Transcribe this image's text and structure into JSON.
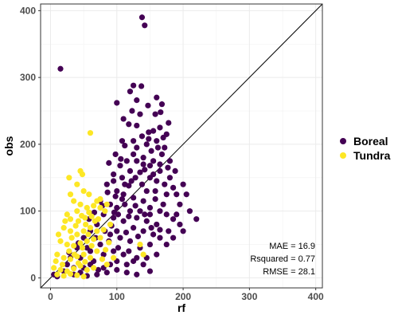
{
  "chart_data": {
    "type": "scatter",
    "xlabel": "rf",
    "ylabel": "obs",
    "xlim": [
      -15,
      410
    ],
    "ylim": [
      -15,
      410
    ],
    "x_ticks": [
      0,
      100,
      200,
      300,
      400
    ],
    "y_ticks": [
      0,
      100,
      200,
      300,
      400
    ],
    "x_tick_labels": [
      "0",
      "100",
      "200",
      "300",
      "400"
    ],
    "y_tick_labels": [
      "0",
      "100",
      "200",
      "300",
      "400"
    ],
    "grid": true,
    "reference_line": "y = x",
    "legend": {
      "position": "right",
      "entries": [
        {
          "label": "Boreal",
          "color": "#440154"
        },
        {
          "label": "Tundra",
          "color": "#FDE725"
        }
      ]
    },
    "annotations": [
      "MAE = 16.9",
      "Rsquared = 0.77",
      "RMSE = 28.1"
    ],
    "series": [
      {
        "name": "Boreal",
        "color": "#440154",
        "points": [
          [
            138,
            390
          ],
          [
            142,
            378
          ],
          [
            15,
            313
          ],
          [
            125,
            288
          ],
          [
            137,
            287
          ],
          [
            120,
            279
          ],
          [
            130,
            266
          ],
          [
            147,
            258
          ],
          [
            100,
            262
          ],
          [
            135,
            245
          ],
          [
            165,
            225
          ],
          [
            155,
            220
          ],
          [
            148,
            218
          ],
          [
            175,
            215
          ],
          [
            170,
            210
          ],
          [
            110,
            238
          ],
          [
            118,
            230
          ],
          [
            160,
            205
          ],
          [
            145,
            200
          ],
          [
            130,
            195
          ],
          [
            125,
            185
          ],
          [
            140,
            180
          ],
          [
            155,
            175
          ],
          [
            165,
            170
          ],
          [
            115,
            175
          ],
          [
            105,
            168
          ],
          [
            120,
            160
          ],
          [
            135,
            158
          ],
          [
            150,
            150
          ],
          [
            160,
            145
          ],
          [
            180,
            150
          ],
          [
            185,
            135
          ],
          [
            175,
            125
          ],
          [
            95,
            155
          ],
          [
            85,
            140
          ],
          [
            100,
            130
          ],
          [
            110,
            125
          ],
          [
            125,
            120
          ],
          [
            140,
            115
          ],
          [
            150,
            105
          ],
          [
            165,
            100
          ],
          [
            175,
            95
          ],
          [
            185,
            88
          ],
          [
            195,
            80
          ],
          [
            120,
            100
          ],
          [
            130,
            90
          ],
          [
            100,
            105
          ],
          [
            90,
            110
          ],
          [
            75,
            115
          ],
          [
            80,
            95
          ],
          [
            95,
            90
          ],
          [
            110,
            85
          ],
          [
            125,
            75
          ],
          [
            140,
            70
          ],
          [
            155,
            65
          ],
          [
            165,
            60
          ],
          [
            150,
            50
          ],
          [
            135,
            45
          ],
          [
            120,
            55
          ],
          [
            105,
            60
          ],
          [
            90,
            65
          ],
          [
            70,
            80
          ],
          [
            60,
            70
          ],
          [
            50,
            60
          ],
          [
            40,
            45
          ],
          [
            30,
            30
          ],
          [
            25,
            20
          ],
          [
            20,
            10
          ],
          [
            35,
            5
          ],
          [
            50,
            15
          ],
          [
            65,
            25
          ],
          [
            80,
            35
          ],
          [
            95,
            40
          ],
          [
            110,
            35
          ],
          [
            125,
            25
          ],
          [
            140,
            20
          ],
          [
            150,
            10
          ],
          [
            130,
            5
          ],
          [
            115,
            8
          ],
          [
            100,
            12
          ],
          [
            85,
            8
          ],
          [
            70,
            5
          ],
          [
            55,
            3
          ],
          [
            45,
            8
          ],
          [
            10,
            2
          ],
          [
            5,
            5
          ],
          [
            60,
            40
          ],
          [
            75,
            50
          ],
          [
            88,
            55
          ],
          [
            102,
            45
          ],
          [
            118,
            40
          ],
          [
            160,
            80
          ],
          [
            170,
            110
          ],
          [
            145,
            130
          ],
          [
            150,
            95
          ],
          [
            112,
            140
          ],
          [
            128,
            150
          ],
          [
            138,
            140
          ],
          [
            158,
            130
          ],
          [
            172,
            140
          ],
          [
            188,
            160
          ],
          [
            180,
            175
          ],
          [
            168,
            185
          ],
          [
            150,
            168
          ],
          [
            142,
            162
          ],
          [
            122,
            145
          ],
          [
            108,
            118
          ],
          [
            98,
            122
          ],
          [
            86,
            128
          ],
          [
            128,
            108
          ],
          [
            118,
            92
          ],
          [
            158,
            118
          ],
          [
            205,
            125
          ],
          [
            195,
            110
          ],
          [
            210,
            100
          ],
          [
            220,
            88
          ],
          [
            200,
            70
          ],
          [
            185,
            60
          ],
          [
            175,
            50
          ],
          [
            160,
            35
          ],
          [
            145,
            30
          ],
          [
            130,
            30
          ],
          [
            115,
            20
          ],
          [
            100,
            25
          ],
          [
            90,
            20
          ],
          [
            80,
            15
          ],
          [
            100,
            70
          ],
          [
            114,
            68
          ],
          [
            132,
            62
          ],
          [
            145,
            85
          ],
          [
            135,
            100
          ],
          [
            92,
            78
          ],
          [
            82,
            70
          ],
          [
            68,
            60
          ],
          [
            55,
            45
          ],
          [
            45,
            30
          ],
          [
            60,
            20
          ],
          [
            72,
            12
          ],
          [
            35,
            15
          ],
          [
            28,
            38
          ],
          [
            42,
            52
          ],
          [
            58,
            88
          ],
          [
            66,
            98
          ],
          [
            78,
            108
          ],
          [
            102,
            95
          ],
          [
            112,
            110
          ],
          [
            142,
            95
          ],
          [
            152,
            75
          ],
          [
            165,
            72
          ],
          [
            178,
            70
          ],
          [
            190,
            95
          ],
          [
            200,
            140
          ],
          [
            190,
            125
          ],
          [
            177,
            165
          ],
          [
            165,
            160
          ],
          [
            155,
            155
          ],
          [
            140,
            170
          ],
          [
            130,
            175
          ],
          [
            112,
            198
          ],
          [
            106,
            178
          ],
          [
            152,
            190
          ],
          [
            162,
            195
          ],
          [
            172,
            195
          ],
          [
            148,
            208
          ],
          [
            138,
            212
          ],
          [
            125,
            205
          ],
          [
            158,
            245
          ],
          [
            166,
            248
          ],
          [
            168,
            260
          ],
          [
            160,
            270
          ],
          [
            178,
            232
          ],
          [
            123,
            250
          ],
          [
            130,
            228
          ],
          [
            108,
            205
          ],
          [
            98,
            185
          ],
          [
            88,
            172
          ],
          [
            95,
            145
          ],
          [
            108,
            150
          ],
          [
            118,
            138
          ],
          [
            96,
            98
          ]
        ]
      },
      {
        "name": "Tundra",
        "color": "#FDE725",
        "points": [
          [
            60,
            217
          ],
          [
            45,
            160
          ],
          [
            48,
            155
          ],
          [
            28,
            150
          ],
          [
            40,
            140
          ],
          [
            30,
            125
          ],
          [
            50,
            130
          ],
          [
            58,
            125
          ],
          [
            35,
            115
          ],
          [
            45,
            110
          ],
          [
            55,
            105
          ],
          [
            65,
            108
          ],
          [
            75,
            105
          ],
          [
            82,
            100
          ],
          [
            40,
            100
          ],
          [
            25,
            95
          ],
          [
            30,
            88
          ],
          [
            42,
            85
          ],
          [
            52,
            90
          ],
          [
            62,
            92
          ],
          [
            72,
            88
          ],
          [
            20,
            75
          ],
          [
            30,
            70
          ],
          [
            40,
            65
          ],
          [
            50,
            70
          ],
          [
            60,
            75
          ],
          [
            70,
            70
          ],
          [
            80,
            72
          ],
          [
            90,
            80
          ],
          [
            15,
            55
          ],
          [
            25,
            50
          ],
          [
            35,
            48
          ],
          [
            45,
            52
          ],
          [
            55,
            55
          ],
          [
            65,
            58
          ],
          [
            75,
            60
          ],
          [
            10,
            35
          ],
          [
            20,
            30
          ],
          [
            30,
            28
          ],
          [
            40,
            32
          ],
          [
            50,
            35
          ],
          [
            60,
            30
          ],
          [
            70,
            40
          ],
          [
            5,
            15
          ],
          [
            15,
            12
          ],
          [
            25,
            10
          ],
          [
            35,
            14
          ],
          [
            45,
            18
          ],
          [
            55,
            12
          ],
          [
            65,
            15
          ],
          [
            10,
            5
          ],
          [
            20,
            3
          ],
          [
            30,
            6
          ],
          [
            40,
            4
          ],
          [
            50,
            2
          ],
          [
            83,
            42
          ],
          [
            88,
            53
          ],
          [
            32,
            60
          ],
          [
            38,
            78
          ],
          [
            47,
            93
          ],
          [
            67,
            85
          ],
          [
            53,
            80
          ],
          [
            57,
            65
          ],
          [
            70,
            115
          ],
          [
            85,
            110
          ],
          [
            75,
            118
          ],
          [
            135,
            50
          ],
          [
            140,
            35
          ],
          [
            28,
            40
          ],
          [
            48,
            45
          ],
          [
            42,
            22
          ],
          [
            52,
            24
          ],
          [
            62,
            48
          ],
          [
            18,
            20
          ],
          [
            8,
            25
          ],
          [
            78,
            28
          ],
          [
            85,
            20
          ],
          [
            95,
            30
          ],
          [
            22,
            85
          ],
          [
            12,
            65
          ],
          [
            36,
            35
          ],
          [
            58,
            98
          ]
        ]
      }
    ]
  }
}
